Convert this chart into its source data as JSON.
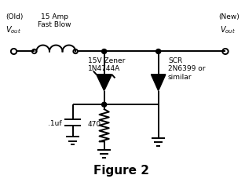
{
  "title": "Figure 2",
  "bg_color": "#ffffff",
  "line_color": "black",
  "lw": 1.4,
  "old_vout_label": "(Old)\n$V_{out}$",
  "new_vout_label": "(New)\n$V_{out}$",
  "fuse_label": "15 Amp\nFast Blow",
  "zener_label": "15V Zener\n1N4744A",
  "scr_label": "SCR\n2N6399 or\nsimilar",
  "cap_label": ".1uf",
  "res_label": "470",
  "title_fontsize": 11,
  "label_fontsize": 6.5
}
